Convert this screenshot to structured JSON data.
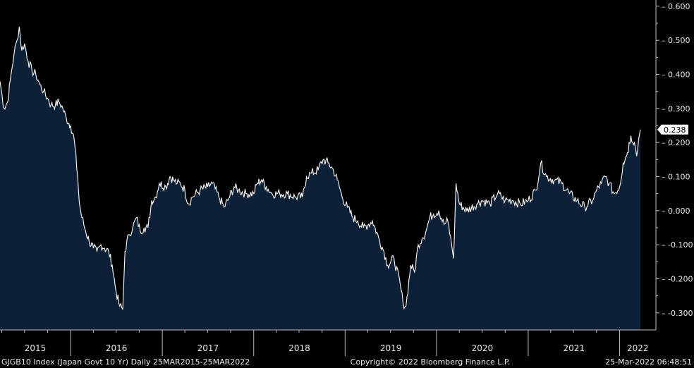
{
  "chart_data": {
    "type": "area",
    "x_range": [
      "2015-03-25",
      "2022-03-25"
    ],
    "ylim": [
      -0.35,
      0.61
    ],
    "y_ticks": [
      "0.600",
      "0.500",
      "0.400",
      "0.300",
      "0.200",
      "0.100",
      "0.000",
      "-0.100",
      "-0.200",
      "-0.300"
    ],
    "y_tick_values": [
      0.6,
      0.5,
      0.4,
      0.3,
      0.2,
      0.1,
      0.0,
      -0.1,
      -0.2,
      -0.3
    ],
    "x_tick_labels": [
      "2015",
      "2016",
      "2017",
      "2018",
      "2019",
      "2020",
      "2021",
      "2022"
    ],
    "last_value_label": "0.238",
    "last_value": 0.238,
    "series": [
      {
        "values": [
          [
            "2015-03-25",
            0.38
          ],
          [
            "2015-04-10",
            0.3
          ],
          [
            "2015-04-25",
            0.32
          ],
          [
            "2015-05-08",
            0.4
          ],
          [
            "2015-05-20",
            0.46
          ],
          [
            "2015-06-01",
            0.5
          ],
          [
            "2015-06-10",
            0.54
          ],
          [
            "2015-06-20",
            0.47
          ],
          [
            "2015-07-01",
            0.49
          ],
          [
            "2015-07-15",
            0.44
          ],
          [
            "2015-07-31",
            0.41
          ],
          [
            "2015-08-15",
            0.4
          ],
          [
            "2015-08-31",
            0.37
          ],
          [
            "2015-09-15",
            0.35
          ],
          [
            "2015-10-01",
            0.33
          ],
          [
            "2015-10-15",
            0.31
          ],
          [
            "2015-11-01",
            0.31
          ],
          [
            "2015-11-15",
            0.32
          ],
          [
            "2015-12-01",
            0.3
          ],
          [
            "2015-12-15",
            0.27
          ],
          [
            "2016-01-01",
            0.25
          ],
          [
            "2016-01-15",
            0.21
          ],
          [
            "2016-01-29",
            0.1
          ],
          [
            "2016-02-05",
            0.02
          ],
          [
            "2016-02-15",
            -0.02
          ],
          [
            "2016-03-01",
            -0.06
          ],
          [
            "2016-03-15",
            -0.09
          ],
          [
            "2016-04-01",
            -0.11
          ],
          [
            "2016-04-15",
            -0.12
          ],
          [
            "2016-05-01",
            -0.1
          ],
          [
            "2016-05-15",
            -0.11
          ],
          [
            "2016-06-01",
            -0.12
          ],
          [
            "2016-06-15",
            -0.16
          ],
          [
            "2016-07-01",
            -0.24
          ],
          [
            "2016-07-15",
            -0.28
          ],
          [
            "2016-07-27",
            -0.29
          ],
          [
            "2016-08-05",
            -0.12
          ],
          [
            "2016-08-20",
            -0.07
          ],
          [
            "2016-09-05",
            -0.05
          ],
          [
            "2016-09-20",
            -0.02
          ],
          [
            "2016-10-05",
            -0.06
          ],
          [
            "2016-10-20",
            -0.05
          ],
          [
            "2016-11-05",
            -0.05
          ],
          [
            "2016-11-20",
            0.03
          ],
          [
            "2016-12-05",
            0.04
          ],
          [
            "2016-12-20",
            0.08
          ],
          [
            "2017-01-15",
            0.07
          ],
          [
            "2017-02-01",
            0.1
          ],
          [
            "2017-02-15",
            0.09
          ],
          [
            "2017-03-01",
            0.08
          ],
          [
            "2017-03-15",
            0.08
          ],
          [
            "2017-04-01",
            0.06
          ],
          [
            "2017-04-15",
            0.02
          ],
          [
            "2017-05-01",
            0.04
          ],
          [
            "2017-06-01",
            0.06
          ],
          [
            "2017-07-01",
            0.07
          ],
          [
            "2017-07-20",
            0.08
          ],
          [
            "2017-08-15",
            0.04
          ],
          [
            "2017-09-05",
            0.01
          ],
          [
            "2017-09-20",
            0.03
          ],
          [
            "2017-10-15",
            0.07
          ],
          [
            "2017-11-01",
            0.06
          ],
          [
            "2017-12-01",
            0.05
          ],
          [
            "2018-01-01",
            0.05
          ],
          [
            "2018-01-15",
            0.08
          ],
          [
            "2018-02-01",
            0.09
          ],
          [
            "2018-02-20",
            0.07
          ],
          [
            "2018-03-15",
            0.05
          ],
          [
            "2018-04-15",
            0.05
          ],
          [
            "2018-05-15",
            0.05
          ],
          [
            "2018-06-15",
            0.04
          ],
          [
            "2018-07-15",
            0.04
          ],
          [
            "2018-07-31",
            0.1
          ],
          [
            "2018-08-20",
            0.11
          ],
          [
            "2018-09-15",
            0.12
          ],
          [
            "2018-10-05",
            0.15
          ],
          [
            "2018-10-25",
            0.14
          ],
          [
            "2018-11-15",
            0.12
          ],
          [
            "2018-12-01",
            0.09
          ],
          [
            "2018-12-20",
            0.04
          ],
          [
            "2019-01-10",
            0.01
          ],
          [
            "2019-02-01",
            -0.02
          ],
          [
            "2019-02-20",
            -0.03
          ],
          [
            "2019-03-15",
            -0.05
          ],
          [
            "2019-04-05",
            -0.04
          ],
          [
            "2019-04-20",
            -0.03
          ],
          [
            "2019-05-15",
            -0.08
          ],
          [
            "2019-06-05",
            -0.12
          ],
          [
            "2019-06-20",
            -0.16
          ],
          [
            "2019-07-15",
            -0.14
          ],
          [
            "2019-08-10",
            -0.22
          ],
          [
            "2019-08-20",
            -0.27
          ],
          [
            "2019-09-01",
            -0.28
          ],
          [
            "2019-09-20",
            -0.16
          ],
          [
            "2019-10-05",
            -0.18
          ],
          [
            "2019-10-20",
            -0.1
          ],
          [
            "2019-11-05",
            -0.08
          ],
          [
            "2019-11-20",
            -0.06
          ],
          [
            "2019-12-05",
            -0.02
          ],
          [
            "2019-12-20",
            -0.01
          ],
          [
            "2020-01-10",
            0.0
          ],
          [
            "2020-01-31",
            -0.04
          ],
          [
            "2020-02-15",
            -0.03
          ],
          [
            "2020-03-01",
            -0.1
          ],
          [
            "2020-03-09",
            -0.14
          ],
          [
            "2020-03-19",
            0.08
          ],
          [
            "2020-04-01",
            0.02
          ],
          [
            "2020-05-01",
            0.0
          ],
          [
            "2020-06-10",
            0.02
          ],
          [
            "2020-07-01",
            0.03
          ],
          [
            "2020-08-01",
            0.02
          ],
          [
            "2020-09-01",
            0.05
          ],
          [
            "2020-10-01",
            0.03
          ],
          [
            "2020-11-01",
            0.03
          ],
          [
            "2020-12-01",
            0.02
          ],
          [
            "2021-01-01",
            0.03
          ],
          [
            "2021-02-01",
            0.06
          ],
          [
            "2021-02-20",
            0.14
          ],
          [
            "2021-03-15",
            0.1
          ],
          [
            "2021-04-15",
            0.09
          ],
          [
            "2021-05-15",
            0.08
          ],
          [
            "2021-06-15",
            0.05
          ],
          [
            "2021-07-15",
            0.03
          ],
          [
            "2021-08-15",
            0.01
          ],
          [
            "2021-09-15",
            0.03
          ],
          [
            "2021-10-01",
            0.06
          ],
          [
            "2021-10-20",
            0.08
          ],
          [
            "2021-11-05",
            0.1
          ],
          [
            "2021-11-20",
            0.08
          ],
          [
            "2021-12-10",
            0.05
          ],
          [
            "2022-01-01",
            0.07
          ],
          [
            "2022-01-15",
            0.14
          ],
          [
            "2022-02-01",
            0.17
          ],
          [
            "2022-02-15",
            0.22
          ],
          [
            "2022-03-01",
            0.2
          ],
          [
            "2022-03-10",
            0.16
          ],
          [
            "2022-03-18",
            0.21
          ],
          [
            "2022-03-25",
            0.238
          ]
        ]
      }
    ]
  },
  "footer": {
    "left": "GJGB10 Index (Japan Govt 10 Yr)  Daily 25MAR2015-25MAR2022",
    "center": "Copyright© 2022 Bloomberg Finance L.P.",
    "right": "25-Mar-2022 06:48:51"
  },
  "colors": {
    "background": "#000000",
    "fill": "#0c2038",
    "line": "#ffffff",
    "axis": "#bfbfbf",
    "label_box": "#ffffff"
  }
}
